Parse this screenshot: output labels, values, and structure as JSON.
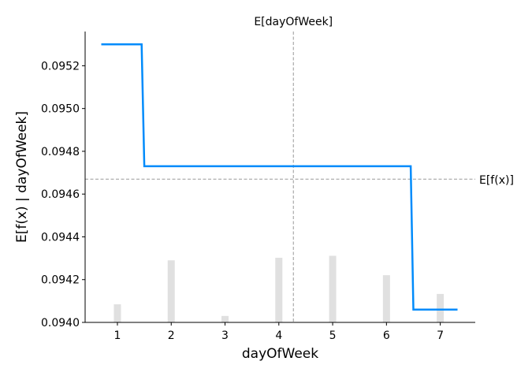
{
  "chart_data": {
    "type": "line",
    "xlabel": "dayOfWeek",
    "ylabel": "E[f(x) | dayOfWeek]",
    "xlim": [
      0.4,
      7.65
    ],
    "ylim": [
      0.094,
      0.09536
    ],
    "x_ticks": [
      1,
      2,
      3,
      4,
      5,
      6,
      7
    ],
    "y_ticks": [
      0.094,
      0.0942,
      0.0944,
      0.0946,
      0.0948,
      0.095,
      0.0952
    ],
    "y_tick_labels": [
      "0.0940",
      "0.0942",
      "0.0944",
      "0.0946",
      "0.0948",
      "0.0950",
      "0.0952"
    ],
    "grid": false,
    "series": [
      {
        "x": [
          0.7,
          1.45,
          1.5,
          6.45,
          6.5,
          7.32
        ],
        "y": [
          0.0953,
          0.0953,
          0.09473,
          0.09473,
          0.09406,
          0.09406
        ],
        "color": "#008bfb"
      }
    ],
    "histogram": {
      "color": "#e0e0e0",
      "x": [
        1,
        2,
        3,
        4,
        5,
        6,
        7
      ],
      "relative_heights": [
        0.28,
        0.96,
        0.1,
        1.0,
        1.03,
        0.73,
        0.44
      ]
    },
    "expected_value_x": {
      "label": "E[dayOfWeek]",
      "value": 4.27
    },
    "expected_value_y": {
      "label": "E[f(x)]",
      "value": 0.09467
    },
    "reference_line_color": "#999999"
  }
}
